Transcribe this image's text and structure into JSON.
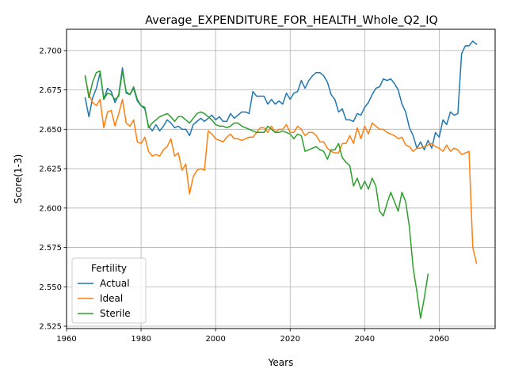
{
  "chart_data": {
    "type": "line",
    "title": "Average_EXPENDITURE_FOR_HEALTH_Whole_Q2_IQ",
    "xlabel": "Years",
    "ylabel": "Score(1-3)",
    "xlim": [
      1960,
      2075
    ],
    "ylim": [
      2.5235,
      2.7135
    ],
    "xticks": [
      1960,
      1980,
      2000,
      2020,
      2040,
      2060
    ],
    "xtick_labels": [
      "1960",
      "1980",
      "2000",
      "2020",
      "2040",
      "2060"
    ],
    "yticks": [
      2.525,
      2.55,
      2.575,
      2.6,
      2.625,
      2.65,
      2.675,
      2.7
    ],
    "ytick_labels": [
      "2.525",
      "2.550",
      "2.575",
      "2.600",
      "2.625",
      "2.650",
      "2.675",
      "2.700"
    ],
    "grid": true,
    "legend": {
      "title": "Fertility",
      "placement": "lower-left"
    },
    "series": [
      {
        "name": "Actual",
        "color": "#1f77b4",
        "x": [
          1965,
          1966,
          1967,
          1968,
          1969,
          1970,
          1971,
          1972,
          1973,
          1974,
          1975,
          1976,
          1977,
          1978,
          1979,
          1980,
          1981,
          1982,
          1983,
          1984,
          1985,
          1986,
          1987,
          1988,
          1989,
          1990,
          1991,
          1992,
          1993,
          1994,
          1995,
          1996,
          1997,
          1998,
          1999,
          2000,
          2001,
          2002,
          2003,
          2004,
          2005,
          2006,
          2007,
          2008,
          2009,
          2010,
          2011,
          2012,
          2013,
          2014,
          2015,
          2016,
          2017,
          2018,
          2019,
          2020,
          2021,
          2022,
          2023,
          2024,
          2025,
          2026,
          2027,
          2028,
          2029,
          2030,
          2031,
          2032,
          2033,
          2034,
          2035,
          2036,
          2037,
          2038,
          2039,
          2040,
          2041,
          2042,
          2043,
          2044,
          2045,
          2046,
          2047,
          2048,
          2049,
          2050,
          2051,
          2052,
          2053,
          2054,
          2055,
          2056,
          2057,
          2058,
          2059,
          2060,
          2061,
          2062,
          2063,
          2064,
          2065,
          2066,
          2067,
          2068,
          2069,
          2070
        ],
        "values": [
          2.67,
          2.658,
          2.67,
          2.676,
          2.686,
          2.669,
          2.676,
          2.674,
          2.667,
          2.672,
          2.689,
          2.673,
          2.672,
          2.676,
          2.668,
          2.665,
          2.663,
          2.652,
          2.649,
          2.653,
          2.649,
          2.652,
          2.656,
          2.654,
          2.651,
          2.652,
          2.65,
          2.65,
          2.646,
          2.653,
          2.655,
          2.657,
          2.655,
          2.657,
          2.659,
          2.656,
          2.658,
          2.655,
          2.655,
          2.66,
          2.657,
          2.659,
          2.661,
          2.661,
          2.66,
          2.674,
          2.671,
          2.671,
          2.671,
          2.666,
          2.669,
          2.666,
          2.668,
          2.666,
          2.673,
          2.669,
          2.673,
          2.674,
          2.681,
          2.676,
          2.681,
          2.684,
          2.686,
          2.686,
          2.684,
          2.68,
          2.672,
          2.669,
          2.661,
          2.663,
          2.656,
          2.656,
          2.655,
          2.66,
          2.659,
          2.664,
          2.667,
          2.672,
          2.676,
          2.677,
          2.682,
          2.681,
          2.682,
          2.679,
          2.675,
          2.666,
          2.661,
          2.651,
          2.646,
          2.638,
          2.642,
          2.637,
          2.643,
          2.638,
          2.648,
          2.645,
          2.656,
          2.653,
          2.661,
          2.659,
          2.66,
          2.698,
          2.703,
          2.703,
          2.706,
          2.704
        ]
      },
      {
        "name": "Ideal",
        "color": "#ff7f0e",
        "x": [
          1965,
          1966,
          1967,
          1968,
          1969,
          1970,
          1971,
          1972,
          1973,
          1974,
          1975,
          1976,
          1977,
          1978,
          1979,
          1980,
          1981,
          1982,
          1983,
          1984,
          1985,
          1986,
          1987,
          1988,
          1989,
          1990,
          1991,
          1992,
          1993,
          1994,
          1995,
          1996,
          1997,
          1998,
          1999,
          2000,
          2001,
          2002,
          2003,
          2004,
          2005,
          2006,
          2007,
          2008,
          2009,
          2010,
          2011,
          2012,
          2013,
          2014,
          2015,
          2016,
          2017,
          2018,
          2019,
          2020,
          2021,
          2022,
          2023,
          2024,
          2025,
          2026,
          2027,
          2028,
          2029,
          2030,
          2031,
          2032,
          2033,
          2034,
          2035,
          2036,
          2037,
          2038,
          2039,
          2040,
          2041,
          2042,
          2043,
          2044,
          2045,
          2046,
          2047,
          2048,
          2049,
          2050,
          2051,
          2052,
          2053,
          2054,
          2055,
          2056,
          2057,
          2058,
          2059,
          2060,
          2061,
          2062,
          2063,
          2064,
          2065,
          2066,
          2067,
          2068,
          2069,
          2070
        ],
        "values": [
          2.683,
          2.672,
          2.667,
          2.665,
          2.669,
          2.651,
          2.661,
          2.662,
          2.652,
          2.66,
          2.669,
          2.654,
          2.652,
          2.656,
          2.642,
          2.641,
          2.645,
          2.636,
          2.633,
          2.634,
          2.633,
          2.637,
          2.639,
          2.644,
          2.633,
          2.635,
          2.624,
          2.628,
          2.609,
          2.62,
          2.624,
          2.625,
          2.624,
          2.649,
          2.647,
          2.644,
          2.643,
          2.642,
          2.645,
          2.647,
          2.644,
          2.644,
          2.643,
          2.644,
          2.645,
          2.645,
          2.648,
          2.651,
          2.651,
          2.648,
          2.652,
          2.648,
          2.65,
          2.65,
          2.653,
          2.648,
          2.648,
          2.652,
          2.65,
          2.646,
          2.648,
          2.648,
          2.646,
          2.642,
          2.642,
          2.638,
          2.636,
          2.635,
          2.635,
          2.641,
          2.641,
          2.646,
          2.641,
          2.651,
          2.644,
          2.652,
          2.647,
          2.654,
          2.652,
          2.65,
          2.65,
          2.648,
          2.647,
          2.646,
          2.644,
          2.645,
          2.64,
          2.639,
          2.636,
          2.638,
          2.638,
          2.639,
          2.64,
          2.641,
          2.639,
          2.638,
          2.636,
          2.64,
          2.636,
          2.638,
          2.637,
          2.634,
          2.635,
          2.636,
          2.575,
          2.565
        ]
      },
      {
        "name": "Sterile",
        "color": "#2ca02c",
        "x": [
          1965,
          1966,
          1967,
          1968,
          1969,
          1970,
          1971,
          1972,
          1973,
          1974,
          1975,
          1976,
          1977,
          1978,
          1979,
          1980,
          1981,
          1982,
          1983,
          1984,
          1985,
          1986,
          1987,
          1988,
          1989,
          1990,
          1991,
          1992,
          1993,
          1994,
          1995,
          1996,
          1997,
          1998,
          1999,
          2000,
          2001,
          2002,
          2003,
          2004,
          2005,
          2006,
          2007,
          2008,
          2009,
          2010,
          2011,
          2012,
          2013,
          2014,
          2015,
          2016,
          2017,
          2018,
          2019,
          2020,
          2021,
          2022,
          2023,
          2024,
          2025,
          2026,
          2027,
          2028,
          2029,
          2030,
          2031,
          2032,
          2033,
          2034,
          2035,
          2036,
          2037,
          2038,
          2039,
          2040,
          2041,
          2042,
          2043,
          2044,
          2045,
          2046,
          2047,
          2048,
          2049,
          2050,
          2051,
          2052,
          2053,
          2054,
          2055,
          2056,
          2057
        ],
        "values": [
          2.684,
          2.67,
          2.68,
          2.686,
          2.687,
          2.669,
          2.673,
          2.672,
          2.669,
          2.671,
          2.687,
          2.674,
          2.672,
          2.677,
          2.669,
          2.665,
          2.664,
          2.651,
          2.654,
          2.656,
          2.658,
          2.659,
          2.66,
          2.658,
          2.655,
          2.658,
          2.658,
          2.656,
          2.654,
          2.657,
          2.66,
          2.661,
          2.66,
          2.658,
          2.656,
          2.653,
          2.652,
          2.652,
          2.651,
          2.652,
          2.654,
          2.654,
          2.652,
          2.651,
          2.65,
          2.649,
          2.648,
          2.648,
          2.648,
          2.652,
          2.65,
          2.648,
          2.648,
          2.649,
          2.648,
          2.647,
          2.644,
          2.647,
          2.646,
          2.636,
          2.637,
          2.638,
          2.639,
          2.637,
          2.636,
          2.631,
          2.637,
          2.637,
          2.641,
          2.632,
          2.629,
          2.627,
          2.614,
          2.619,
          2.612,
          2.617,
          2.612,
          2.619,
          2.614,
          2.598,
          2.595,
          2.603,
          2.61,
          2.604,
          2.598,
          2.61,
          2.604,
          2.588,
          2.562,
          2.547,
          2.53,
          2.543,
          2.558
        ]
      }
    ]
  }
}
